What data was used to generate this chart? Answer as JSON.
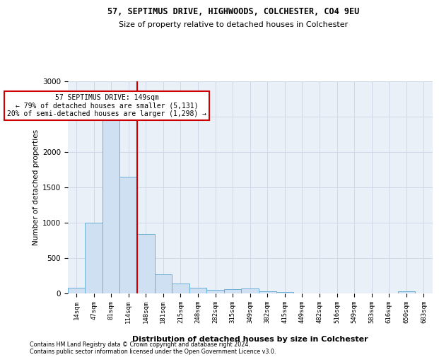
{
  "title_line1": "57, SEPTIMUS DRIVE, HIGHWOODS, COLCHESTER, CO4 9EU",
  "title_line2": "Size of property relative to detached houses in Colchester",
  "xlabel": "Distribution of detached houses by size in Colchester",
  "ylabel": "Number of detached properties",
  "footnote1": "Contains HM Land Registry data © Crown copyright and database right 2024.",
  "footnote2": "Contains public sector information licensed under the Open Government Licence v3.0.",
  "annotation_line1": "57 SEPTIMUS DRIVE: 149sqm",
  "annotation_line2": "← 79% of detached houses are smaller (5,131)",
  "annotation_line3": "20% of semi-detached houses are larger (1,298) →",
  "bar_labels": [
    "14sqm",
    "47sqm",
    "81sqm",
    "114sqm",
    "148sqm",
    "181sqm",
    "215sqm",
    "248sqm",
    "282sqm",
    "315sqm",
    "349sqm",
    "382sqm",
    "415sqm",
    "449sqm",
    "482sqm",
    "516sqm",
    "549sqm",
    "583sqm",
    "616sqm",
    "650sqm",
    "683sqm"
  ],
  "bar_values": [
    75,
    1000,
    2450,
    1650,
    840,
    270,
    140,
    75,
    45,
    60,
    65,
    30,
    20,
    0,
    0,
    0,
    0,
    0,
    0,
    30,
    0
  ],
  "bar_color": "#cfe0f2",
  "bar_edge_color": "#6baed6",
  "vline_x": 3.5,
  "vline_color": "#cc0000",
  "ylim": [
    0,
    3000
  ],
  "yticks": [
    0,
    500,
    1000,
    1500,
    2000,
    2500,
    3000
  ],
  "bg_color": "#ffffff",
  "plot_bg_color": "#eaf0f8",
  "grid_color": "#d0d8e8"
}
